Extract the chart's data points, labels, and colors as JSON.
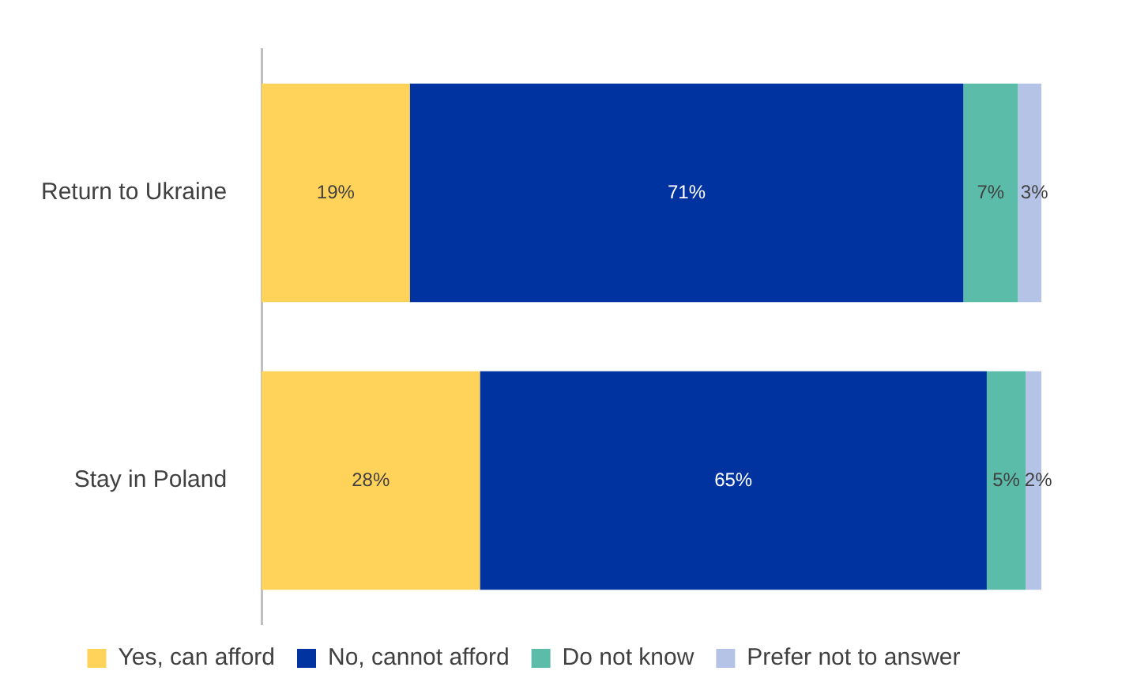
{
  "chart_data": {
    "type": "bar",
    "orientation": "horizontal",
    "stacked": true,
    "categories": [
      "Return to Ukraine",
      "Stay in Poland"
    ],
    "series": [
      {
        "name": "Yes, can afford",
        "color": "#ffd25a",
        "values": [
          19,
          28
        ],
        "value_labels": [
          "19%",
          "28%"
        ]
      },
      {
        "name": "No, cannot afford",
        "color": "#0033a0",
        "values": [
          71,
          65
        ],
        "value_labels": [
          "71%",
          "65%"
        ]
      },
      {
        "name": "Do not know",
        "color": "#5bbcaa",
        "values": [
          7,
          5
        ],
        "value_labels": [
          "7%",
          "5%"
        ]
      },
      {
        "name": "Prefer not to answer",
        "color": "#b4c3e6",
        "values": [
          3,
          2
        ],
        "value_labels": [
          "3%",
          "2%"
        ]
      }
    ],
    "legend": "bottom",
    "grid": false,
    "tick_labels": "y"
  }
}
